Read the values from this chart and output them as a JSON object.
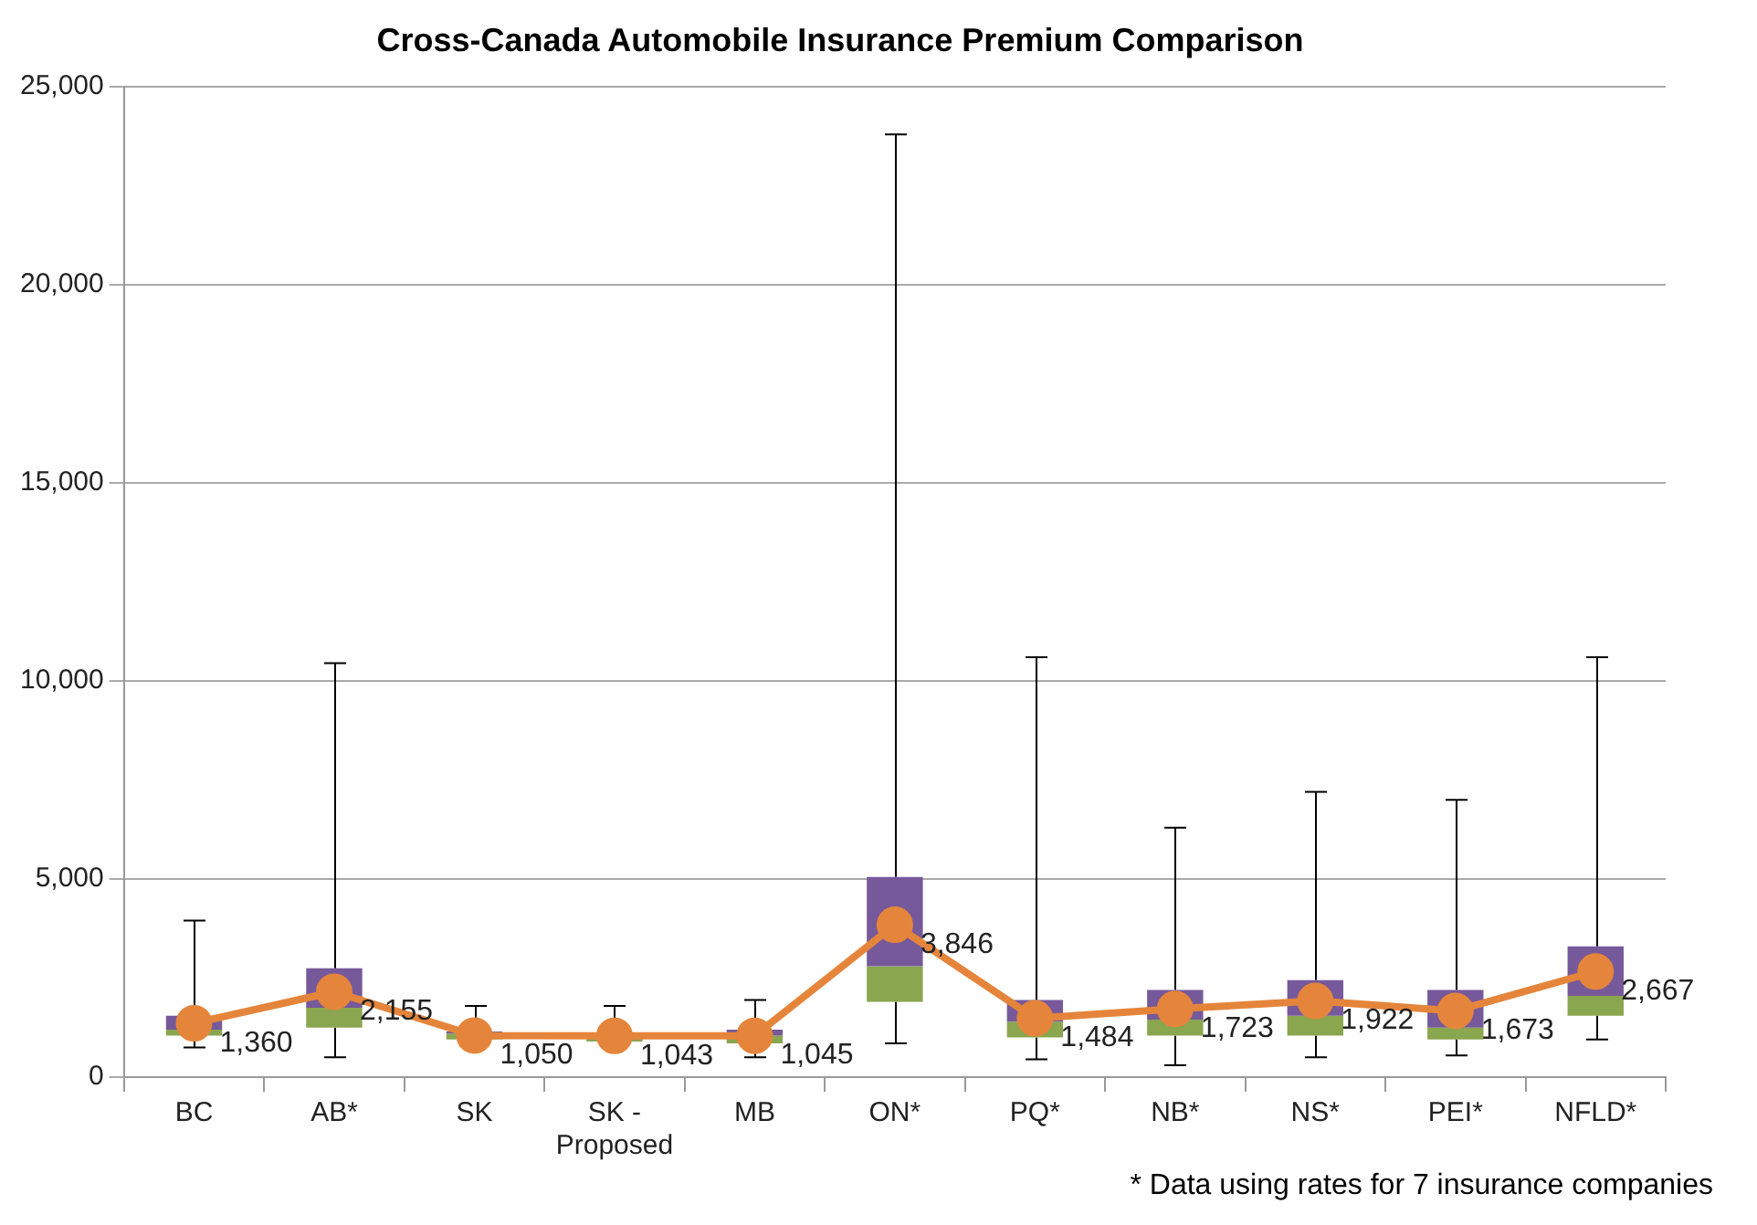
{
  "chart_data": {
    "type": "box",
    "title": "Cross-Canada Automobile Insurance Premium Comparison",
    "categories": [
      "BC",
      "AB*",
      "SK",
      "SK - Proposed",
      "MB",
      "ON*",
      "PQ*",
      "NB*",
      "NS*",
      "PEI*",
      "NFLD*"
    ],
    "series": [
      {
        "type": "box",
        "color": "#76599a",
        "colors": [
          "#8aa64f",
          "#8aa64f",
          "#8aa64f",
          "#8aa64f",
          "#8aa64f",
          "#8aa64f",
          "#8aa64f",
          "#8aa64f",
          "#8aa64f",
          "#8aa64f",
          "#8aa64f"
        ],
        "boxes": [
          {
            "low": 750,
            "q1": 1050,
            "median": 1200,
            "q3": 1550,
            "high": 3950
          },
          {
            "low": 500,
            "q1": 1250,
            "median": 1750,
            "q3": 2750,
            "high": 10450
          },
          {
            "low": 950,
            "q1": 950,
            "median": 1100,
            "q3": 1150,
            "high": 1800
          },
          {
            "low": 900,
            "q1": 900,
            "median": 1000,
            "q3": 1050,
            "high": 1800
          },
          {
            "low": 500,
            "q1": 850,
            "median": 1050,
            "q3": 1200,
            "high": 1950
          },
          {
            "low": 850,
            "q1": 1900,
            "median": 2800,
            "q3": 5050,
            "high": 23800
          },
          {
            "low": 450,
            "q1": 1000,
            "median": 1400,
            "q3": 1950,
            "high": 10600
          },
          {
            "low": 300,
            "q1": 1050,
            "median": 1450,
            "q3": 2200,
            "high": 6300
          },
          {
            "low": 500,
            "q1": 1050,
            "median": 1550,
            "q3": 2450,
            "high": 7200
          },
          {
            "low": 550,
            "q1": 950,
            "median": 1250,
            "q3": 2200,
            "high": 7000
          },
          {
            "low": 950,
            "q1": 1550,
            "median": 2050,
            "q3": 3300,
            "high": 10600
          }
        ]
      },
      {
        "type": "line",
        "color": "#e5853b",
        "marker": "circle",
        "values": [
          1360,
          2155,
          1050,
          1043,
          1045,
          3846,
          1484,
          1723,
          1922,
          1673,
          2667
        ],
        "value_labels": [
          "1,360",
          "2,155",
          "1,050",
          "1,043",
          "1,045",
          "3,846",
          "1,484",
          "1,723",
          "1,922",
          "1,673",
          "2,667"
        ]
      }
    ],
    "ylim": [
      0,
      25000
    ],
    "yticks": [
      {
        "value": 0,
        "label": "0"
      },
      {
        "value": 5000,
        "label": "5,000"
      },
      {
        "value": 10000,
        "label": "10,000"
      },
      {
        "value": 15000,
        "label": "15,000"
      },
      {
        "value": 20000,
        "label": "20,000"
      },
      {
        "value": 25000,
        "label": "25,000"
      }
    ],
    "grid": "y",
    "legend": false,
    "annotations": [
      "* Data using rates for 7 insurance companies"
    ]
  }
}
